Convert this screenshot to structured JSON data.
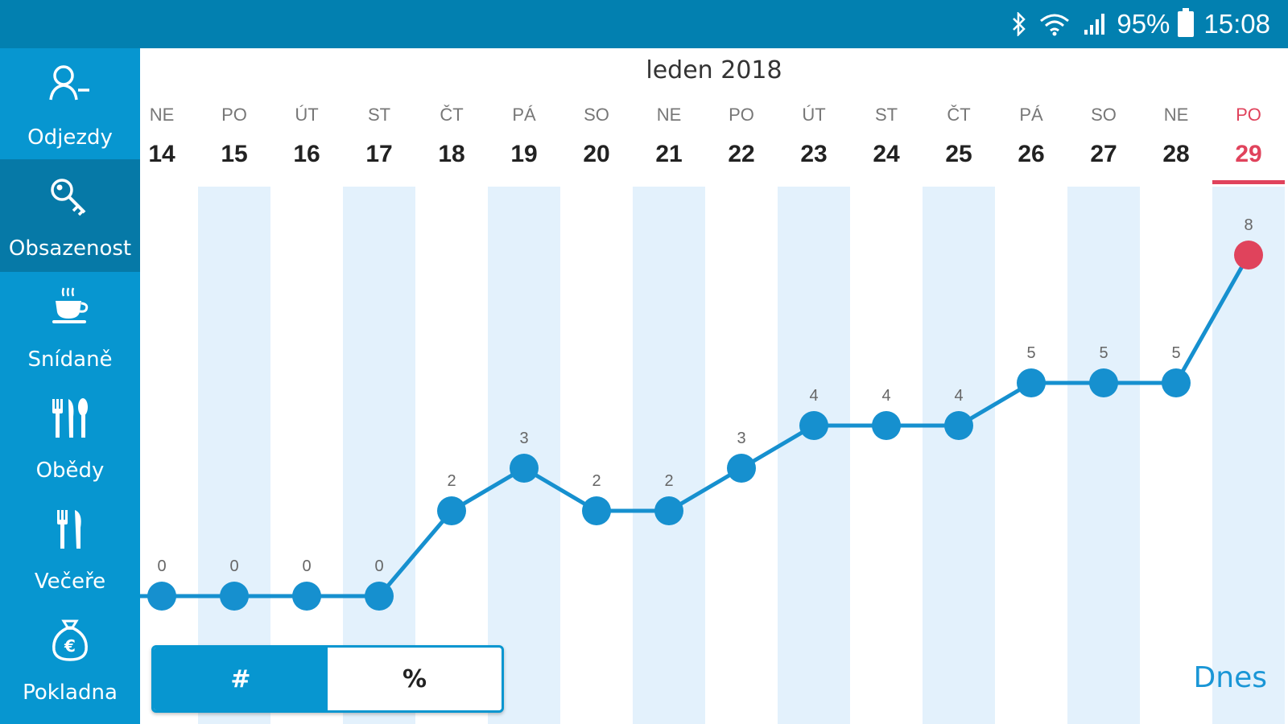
{
  "status_bar": {
    "battery_percent": "95%",
    "time": "15:08",
    "icons": [
      "bluetooth-icon",
      "wifi-icon",
      "signal-icon",
      "battery-icon"
    ]
  },
  "sidebar": {
    "items": [
      {
        "label": "Odjezdy",
        "icon": "person-depart-icon",
        "active": false
      },
      {
        "label": "Obsazenost",
        "icon": "key-icon",
        "active": true
      },
      {
        "label": "Snídaně",
        "icon": "coffee-cup-icon",
        "active": false
      },
      {
        "label": "Obědy",
        "icon": "fork-knife-spoon-icon",
        "active": false
      },
      {
        "label": "Večeře",
        "icon": "fork-knife-icon",
        "active": false
      },
      {
        "label": "Pokladna",
        "icon": "money-bag-euro-icon",
        "active": false
      }
    ]
  },
  "month_label": "leden 2018",
  "toggle": {
    "count_label": "#",
    "percent_label": "%",
    "selected": "#"
  },
  "today_button": "Dnes",
  "colors": {
    "accent": "#0796d0",
    "today": "#e0435c",
    "stripe": "#e3f1fc",
    "line": "#1690cf"
  },
  "chart_data": {
    "type": "line",
    "days": [
      {
        "dow": "NE",
        "day": "14",
        "value": 0
      },
      {
        "dow": "PO",
        "day": "15",
        "value": 0
      },
      {
        "dow": "ÚT",
        "day": "16",
        "value": 0
      },
      {
        "dow": "ST",
        "day": "17",
        "value": 0
      },
      {
        "dow": "ČT",
        "day": "18",
        "value": 2
      },
      {
        "dow": "PÁ",
        "day": "19",
        "value": 3
      },
      {
        "dow": "SO",
        "day": "20",
        "value": 2
      },
      {
        "dow": "NE",
        "day": "21",
        "value": 2
      },
      {
        "dow": "PO",
        "day": "22",
        "value": 3
      },
      {
        "dow": "ÚT",
        "day": "23",
        "value": 4
      },
      {
        "dow": "ST",
        "day": "24",
        "value": 4
      },
      {
        "dow": "ČT",
        "day": "25",
        "value": 4
      },
      {
        "dow": "PÁ",
        "day": "26",
        "value": 5
      },
      {
        "dow": "SO",
        "day": "27",
        "value": 5
      },
      {
        "dow": "NE",
        "day": "28",
        "value": 5
      },
      {
        "dow": "PO",
        "day": "29",
        "value": 8
      }
    ],
    "today_index": 15,
    "ylim": [
      0,
      8
    ]
  }
}
